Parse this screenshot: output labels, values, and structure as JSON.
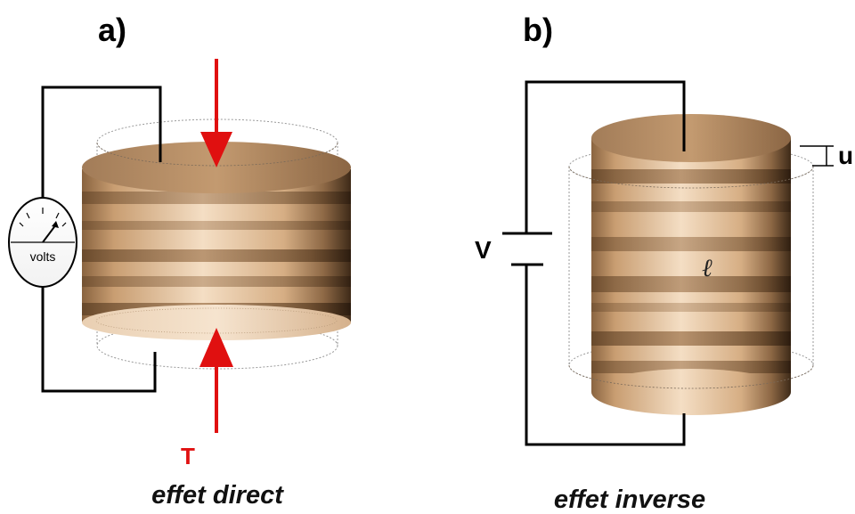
{
  "panel_a": {
    "label": "a)",
    "caption": "effet direct",
    "force_symbol": "T",
    "meter_text": "volts"
  },
  "panel_b": {
    "label": "b)",
    "caption": "effet inverse",
    "voltage_symbol": "V",
    "displacement_symbol": "u",
    "length_symbol": "ℓ"
  },
  "colors": {
    "wire": "#000000",
    "arrow": "#e01010",
    "cylinder_light": "#f3dcc0",
    "cylinder_mid": "#c89a6c",
    "cylinder_dark": "#5a3f28",
    "ghost_outline": "#9a9a9a"
  }
}
